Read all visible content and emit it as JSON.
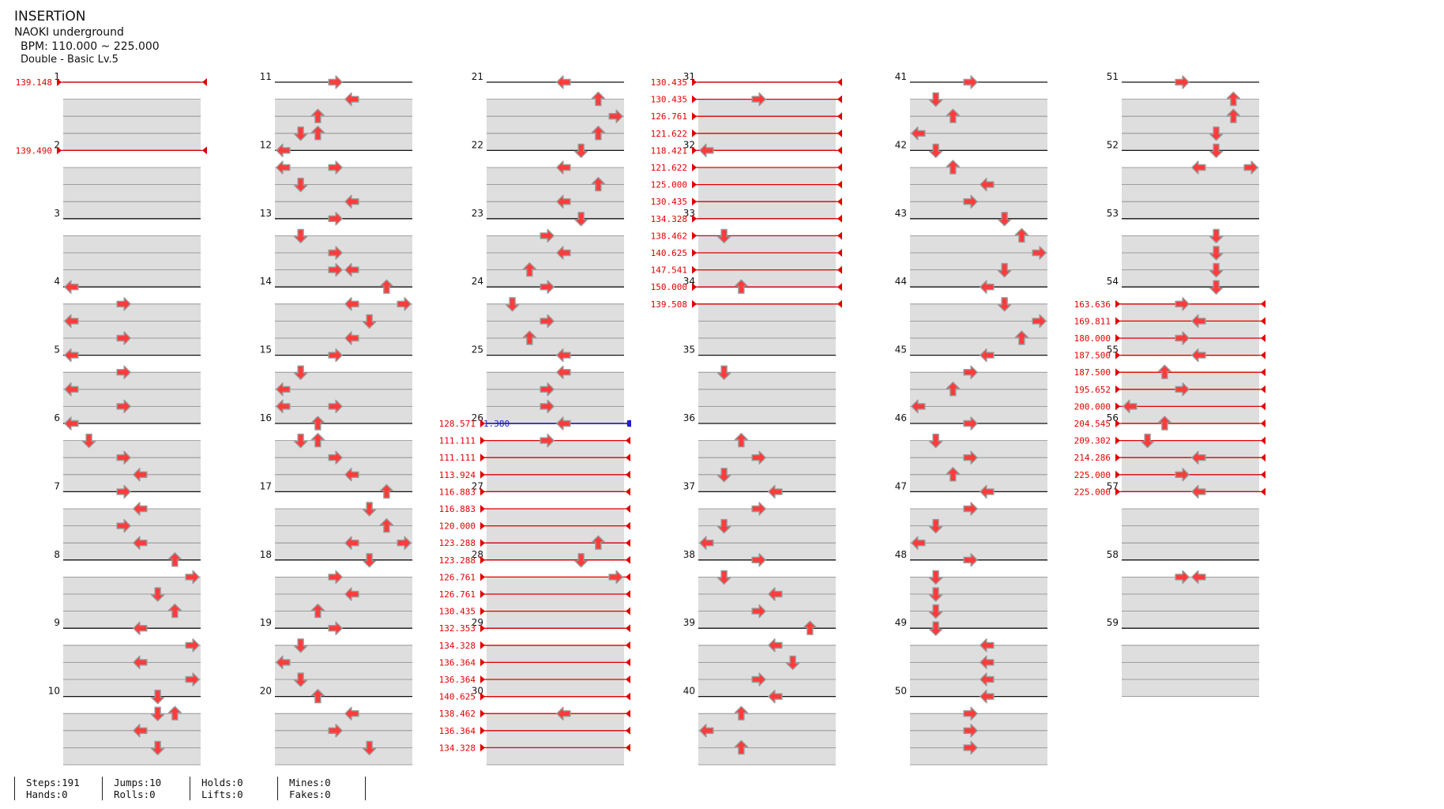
{
  "song": {
    "title": "INSERTiON",
    "artist": "NAOKI underground",
    "bpm": "BPM: 110.000 ~ 225.000",
    "difficulty": "Double - Basic  Lv.5"
  },
  "colors": {
    "arrow_fill": "#ff3b3b",
    "arrow_stroke": "#9a9a9a",
    "bpm_change": "#e00000",
    "stop": "#2020d0",
    "lane_band": "#dedede"
  },
  "measure_count": 59,
  "measure_labels": [
    "1",
    "2",
    "3",
    "4",
    "5",
    "6",
    "7",
    "8",
    "9",
    "10",
    "11",
    "12",
    "13",
    "14",
    "15",
    "16",
    "17",
    "18",
    "19",
    "20",
    "21",
    "22",
    "23",
    "24",
    "25",
    "26",
    "27",
    "28",
    "29",
    "30",
    "31",
    "32",
    "33",
    "34",
    "35",
    "36",
    "37",
    "38",
    "39",
    "40",
    "41",
    "42",
    "43",
    "44",
    "45",
    "46",
    "47",
    "48",
    "49",
    "50",
    "51",
    "52",
    "53",
    "54",
    "55",
    "56",
    "57",
    "58",
    "59"
  ],
  "notes": [
    {
      "m": 4,
      "r": 0,
      "l": 0,
      "d": "L"
    },
    {
      "m": 4,
      "r": 1,
      "l": 3,
      "d": "R"
    },
    {
      "m": 4,
      "r": 2,
      "l": 0,
      "d": "L"
    },
    {
      "m": 4,
      "r": 3,
      "l": 3,
      "d": "R"
    },
    {
      "m": 5,
      "r": 0,
      "l": 0,
      "d": "L"
    },
    {
      "m": 5,
      "r": 1,
      "l": 3,
      "d": "R"
    },
    {
      "m": 5,
      "r": 2,
      "l": 0,
      "d": "L"
    },
    {
      "m": 5,
      "r": 3,
      "l": 3,
      "d": "R"
    },
    {
      "m": 6,
      "r": 0,
      "l": 0,
      "d": "L"
    },
    {
      "m": 6,
      "r": 1,
      "l": 1,
      "d": "D"
    },
    {
      "m": 6,
      "r": 2,
      "l": 3,
      "d": "R"
    },
    {
      "m": 6,
      "r": 3,
      "l": 4,
      "d": "L"
    },
    {
      "m": 7,
      "r": 0,
      "l": 3,
      "d": "R"
    },
    {
      "m": 7,
      "r": 1,
      "l": 4,
      "d": "L"
    },
    {
      "m": 7,
      "r": 2,
      "l": 3,
      "d": "R"
    },
    {
      "m": 7,
      "r": 3,
      "l": 4,
      "d": "L"
    },
    {
      "m": 8,
      "r": 0,
      "l": 6,
      "d": "U"
    },
    {
      "m": 8,
      "r": 1,
      "l": 7,
      "d": "R"
    },
    {
      "m": 8,
      "r": 2,
      "l": 5,
      "d": "D"
    },
    {
      "m": 8,
      "r": 3,
      "l": 6,
      "d": "U"
    },
    {
      "m": 9,
      "r": 0,
      "l": 4,
      "d": "L"
    },
    {
      "m": 9,
      "r": 1,
      "l": 7,
      "d": "R"
    },
    {
      "m": 9,
      "r": 2,
      "l": 4,
      "d": "L"
    },
    {
      "m": 9,
      "r": 3,
      "l": 7,
      "d": "R"
    },
    {
      "m": 10,
      "r": 0,
      "l": 5,
      "d": "D"
    },
    {
      "m": 10,
      "r": 1,
      "l": 5,
      "d": "D"
    },
    {
      "m": 10,
      "r": 1,
      "l": 6,
      "d": "U"
    },
    {
      "m": 10,
      "r": 2,
      "l": 4,
      "d": "L"
    },
    {
      "m": 10,
      "r": 3,
      "l": 5,
      "d": "D"
    },
    {
      "m": 11,
      "r": 0,
      "l": 3,
      "d": "R"
    },
    {
      "m": 11,
      "r": 1,
      "l": 4,
      "d": "L"
    },
    {
      "m": 11,
      "r": 2,
      "l": 2,
      "d": "U"
    },
    {
      "m": 11,
      "r": 3,
      "l": 1,
      "d": "D"
    },
    {
      "m": 11,
      "r": 3,
      "l": 2,
      "d": "U"
    },
    {
      "m": 12,
      "r": 0,
      "l": 0,
      "d": "L"
    },
    {
      "m": 12,
      "r": 1,
      "l": 0,
      "d": "L"
    },
    {
      "m": 12,
      "r": 1,
      "l": 3,
      "d": "R"
    },
    {
      "m": 12,
      "r": 2,
      "l": 1,
      "d": "D"
    },
    {
      "m": 12,
      "r": 3,
      "l": 4,
      "d": "L"
    },
    {
      "m": 13,
      "r": 0,
      "l": 3,
      "d": "R"
    },
    {
      "m": 13,
      "r": 1,
      "l": 1,
      "d": "D"
    },
    {
      "m": 13,
      "r": 2,
      "l": 3,
      "d": "R"
    },
    {
      "m": 13,
      "r": 3,
      "l": 3,
      "d": "R"
    },
    {
      "m": 13,
      "r": 3,
      "l": 4,
      "d": "L"
    },
    {
      "m": 14,
      "r": 0,
      "l": 6,
      "d": "U"
    },
    {
      "m": 14,
      "r": 1,
      "l": 4,
      "d": "L"
    },
    {
      "m": 14,
      "r": 1,
      "l": 7,
      "d": "R"
    },
    {
      "m": 14,
      "r": 2,
      "l": 5,
      "d": "D"
    },
    {
      "m": 14,
      "r": 3,
      "l": 4,
      "d": "L"
    },
    {
      "m": 15,
      "r": 0,
      "l": 3,
      "d": "R"
    },
    {
      "m": 15,
      "r": 1,
      "l": 1,
      "d": "D"
    },
    {
      "m": 15,
      "r": 2,
      "l": 0,
      "d": "L"
    },
    {
      "m": 15,
      "r": 3,
      "l": 0,
      "d": "L"
    },
    {
      "m": 15,
      "r": 3,
      "l": 3,
      "d": "R"
    },
    {
      "m": 16,
      "r": 0,
      "l": 2,
      "d": "U"
    },
    {
      "m": 16,
      "r": 1,
      "l": 1,
      "d": "D"
    },
    {
      "m": 16,
      "r": 1,
      "l": 2,
      "d": "U"
    },
    {
      "m": 16,
      "r": 2,
      "l": 3,
      "d": "R"
    },
    {
      "m": 16,
      "r": 3,
      "l": 4,
      "d": "L"
    },
    {
      "m": 17,
      "r": 0,
      "l": 6,
      "d": "U"
    },
    {
      "m": 17,
      "r": 1,
      "l": 5,
      "d": "D"
    },
    {
      "m": 17,
      "r": 2,
      "l": 6,
      "d": "U"
    },
    {
      "m": 17,
      "r": 3,
      "l": 4,
      "d": "L"
    },
    {
      "m": 17,
      "r": 3,
      "l": 7,
      "d": "R"
    },
    {
      "m": 18,
      "r": 0,
      "l": 5,
      "d": "D"
    },
    {
      "m": 18,
      "r": 1,
      "l": 3,
      "d": "R"
    },
    {
      "m": 18,
      "r": 2,
      "l": 4,
      "d": "L"
    },
    {
      "m": 18,
      "r": 3,
      "l": 2,
      "d": "U"
    },
    {
      "m": 19,
      "r": 0,
      "l": 3,
      "d": "R"
    },
    {
      "m": 19,
      "r": 1,
      "l": 1,
      "d": "D"
    },
    {
      "m": 19,
      "r": 2,
      "l": 0,
      "d": "L"
    },
    {
      "m": 19,
      "r": 3,
      "l": 1,
      "d": "D"
    },
    {
      "m": 20,
      "r": 0,
      "l": 2,
      "d": "U"
    },
    {
      "m": 20,
      "r": 1,
      "l": 4,
      "d": "L"
    },
    {
      "m": 20,
      "r": 2,
      "l": 3,
      "d": "R"
    },
    {
      "m": 20,
      "r": 3,
      "l": 5,
      "d": "D"
    },
    {
      "m": 21,
      "r": 0,
      "l": 4,
      "d": "L"
    },
    {
      "m": 21,
      "r": 1,
      "l": 6,
      "d": "U"
    },
    {
      "m": 21,
      "r": 2,
      "l": 7,
      "d": "R"
    },
    {
      "m": 21,
      "r": 3,
      "l": 6,
      "d": "U"
    },
    {
      "m": 22,
      "r": 0,
      "l": 5,
      "d": "D"
    },
    {
      "m": 22,
      "r": 1,
      "l": 4,
      "d": "L"
    },
    {
      "m": 22,
      "r": 2,
      "l": 6,
      "d": "U"
    },
    {
      "m": 22,
      "r": 3,
      "l": 4,
      "d": "L"
    },
    {
      "m": 23,
      "r": 0,
      "l": 5,
      "d": "D"
    },
    {
      "m": 23,
      "r": 1,
      "l": 3,
      "d": "R"
    },
    {
      "m": 23,
      "r": 2,
      "l": 4,
      "d": "L"
    },
    {
      "m": 23,
      "r": 3,
      "l": 2,
      "d": "U"
    },
    {
      "m": 24,
      "r": 0,
      "l": 3,
      "d": "R"
    },
    {
      "m": 24,
      "r": 1,
      "l": 1,
      "d": "D"
    },
    {
      "m": 24,
      "r": 2,
      "l": 3,
      "d": "R"
    },
    {
      "m": 24,
      "r": 3,
      "l": 2,
      "d": "U"
    },
    {
      "m": 25,
      "r": 0,
      "l": 4,
      "d": "L"
    },
    {
      "m": 25,
      "r": 1,
      "l": 4,
      "d": "L"
    },
    {
      "m": 25,
      "r": 2,
      "l": 3,
      "d": "R"
    },
    {
      "m": 25,
      "r": 3,
      "l": 3,
      "d": "R"
    },
    {
      "m": 26,
      "r": 0,
      "l": 4,
      "d": "L"
    },
    {
      "m": 26,
      "r": 1,
      "l": 3,
      "d": "R"
    },
    {
      "m": 28,
      "r": 0,
      "l": 5,
      "d": "D"
    },
    {
      "m": 28,
      "r": 1,
      "l": 7,
      "d": "R"
    },
    {
      "m": 27,
      "r": 3,
      "l": 6,
      "d": "U"
    },
    {
      "m": 30,
      "r": 1,
      "l": 4,
      "d": "L"
    },
    {
      "m": 32,
      "r": 0,
      "l": 0,
      "d": "L"
    },
    {
      "m": 31,
      "r": 1,
      "l": 3,
      "d": "R"
    },
    {
      "m": 33,
      "r": 1,
      "l": 1,
      "d": "D"
    },
    {
      "m": 34,
      "r": 0,
      "l": 2,
      "d": "U"
    },
    {
      "m": 35,
      "r": 1,
      "l": 1,
      "d": "D"
    },
    {
      "m": 36,
      "r": 1,
      "l": 2,
      "d": "U"
    },
    {
      "m": 36,
      "r": 2,
      "l": 3,
      "d": "R"
    },
    {
      "m": 36,
      "r": 3,
      "l": 1,
      "d": "D"
    },
    {
      "m": 37,
      "r": 0,
      "l": 4,
      "d": "L"
    },
    {
      "m": 37,
      "r": 1,
      "l": 3,
      "d": "R"
    },
    {
      "m": 37,
      "r": 2,
      "l": 1,
      "d": "D"
    },
    {
      "m": 37,
      "r": 3,
      "l": 0,
      "d": "L"
    },
    {
      "m": 38,
      "r": 0,
      "l": 3,
      "d": "R"
    },
    {
      "m": 38,
      "r": 1,
      "l": 1,
      "d": "D"
    },
    {
      "m": 38,
      "r": 2,
      "l": 4,
      "d": "L"
    },
    {
      "m": 38,
      "r": 3,
      "l": 3,
      "d": "R"
    },
    {
      "m": 39,
      "r": 0,
      "l": 6,
      "d": "U"
    },
    {
      "m": 39,
      "r": 1,
      "l": 4,
      "d": "L"
    },
    {
      "m": 39,
      "r": 2,
      "l": 5,
      "d": "D"
    },
    {
      "m": 39,
      "r": 3,
      "l": 3,
      "d": "R"
    },
    {
      "m": 40,
      "r": 0,
      "l": 4,
      "d": "L"
    },
    {
      "m": 40,
      "r": 1,
      "l": 2,
      "d": "U"
    },
    {
      "m": 40,
      "r": 2,
      "l": 0,
      "d": "L"
    },
    {
      "m": 40,
      "r": 3,
      "l": 2,
      "d": "U"
    },
    {
      "m": 41,
      "r": 0,
      "l": 3,
      "d": "R"
    },
    {
      "m": 41,
      "r": 1,
      "l": 1,
      "d": "D"
    },
    {
      "m": 41,
      "r": 2,
      "l": 2,
      "d": "U"
    },
    {
      "m": 41,
      "r": 3,
      "l": 0,
      "d": "L"
    },
    {
      "m": 42,
      "r": 0,
      "l": 1,
      "d": "D"
    },
    {
      "m": 42,
      "r": 1,
      "l": 2,
      "d": "U"
    },
    {
      "m": 42,
      "r": 2,
      "l": 4,
      "d": "L"
    },
    {
      "m": 42,
      "r": 3,
      "l": 3,
      "d": "R"
    },
    {
      "m": 43,
      "r": 0,
      "l": 5,
      "d": "D"
    },
    {
      "m": 43,
      "r": 1,
      "l": 6,
      "d": "U"
    },
    {
      "m": 43,
      "r": 2,
      "l": 7,
      "d": "R"
    },
    {
      "m": 43,
      "r": 3,
      "l": 5,
      "d": "D"
    },
    {
      "m": 44,
      "r": 0,
      "l": 4,
      "d": "L"
    },
    {
      "m": 44,
      "r": 1,
      "l": 5,
      "d": "D"
    },
    {
      "m": 44,
      "r": 2,
      "l": 7,
      "d": "R"
    },
    {
      "m": 44,
      "r": 3,
      "l": 6,
      "d": "U"
    },
    {
      "m": 45,
      "r": 0,
      "l": 4,
      "d": "L"
    },
    {
      "m": 45,
      "r": 1,
      "l": 3,
      "d": "R"
    },
    {
      "m": 45,
      "r": 2,
      "l": 2,
      "d": "U"
    },
    {
      "m": 45,
      "r": 3,
      "l": 0,
      "d": "L"
    },
    {
      "m": 46,
      "r": 0,
      "l": 3,
      "d": "R"
    },
    {
      "m": 46,
      "r": 1,
      "l": 1,
      "d": "D"
    },
    {
      "m": 46,
      "r": 2,
      "l": 3,
      "d": "R"
    },
    {
      "m": 46,
      "r": 3,
      "l": 2,
      "d": "U"
    },
    {
      "m": 47,
      "r": 0,
      "l": 4,
      "d": "L"
    },
    {
      "m": 47,
      "r": 1,
      "l": 3,
      "d": "R"
    },
    {
      "m": 47,
      "r": 2,
      "l": 1,
      "d": "D"
    },
    {
      "m": 47,
      "r": 3,
      "l": 0,
      "d": "L"
    },
    {
      "m": 48,
      "r": 0,
      "l": 3,
      "d": "R"
    },
    {
      "m": 48,
      "r": 1,
      "l": 1,
      "d": "D"
    },
    {
      "m": 48,
      "r": 2,
      "l": 1,
      "d": "D"
    },
    {
      "m": 48,
      "r": 3,
      "l": 1,
      "d": "D"
    },
    {
      "m": 49,
      "r": 0,
      "l": 1,
      "d": "D"
    },
    {
      "m": 49,
      "r": 1,
      "l": 4,
      "d": "L"
    },
    {
      "m": 49,
      "r": 2,
      "l": 4,
      "d": "L"
    },
    {
      "m": 49,
      "r": 3,
      "l": 4,
      "d": "L"
    },
    {
      "m": 50,
      "r": 0,
      "l": 4,
      "d": "L"
    },
    {
      "m": 50,
      "r": 1,
      "l": 3,
      "d": "R"
    },
    {
      "m": 50,
      "r": 2,
      "l": 3,
      "d": "R"
    },
    {
      "m": 50,
      "r": 3,
      "l": 3,
      "d": "R"
    },
    {
      "m": 51,
      "r": 0,
      "l": 3,
      "d": "R"
    },
    {
      "m": 51,
      "r": 1,
      "l": 6,
      "d": "U"
    },
    {
      "m": 51,
      "r": 2,
      "l": 6,
      "d": "U"
    },
    {
      "m": 51,
      "r": 3,
      "l": 5,
      "d": "D"
    },
    {
      "m": 52,
      "r": 0,
      "l": 5,
      "d": "D"
    },
    {
      "m": 52,
      "r": 1,
      "l": 4,
      "d": "L"
    },
    {
      "m": 52,
      "r": 1,
      "l": 7,
      "d": "R"
    },
    {
      "m": 53,
      "r": 1,
      "l": 5,
      "d": "D"
    },
    {
      "m": 53,
      "r": 2,
      "l": 5,
      "d": "D"
    },
    {
      "m": 53,
      "r": 3,
      "l": 5,
      "d": "D"
    },
    {
      "m": 54,
      "r": 0,
      "l": 5,
      "d": "D"
    },
    {
      "m": 54,
      "r": 1,
      "l": 3,
      "d": "R"
    },
    {
      "m": 54,
      "r": 2,
      "l": 4,
      "d": "L"
    },
    {
      "m": 54,
      "r": 3,
      "l": 3,
      "d": "R"
    },
    {
      "m": 55,
      "r": 0,
      "l": 4,
      "d": "L"
    },
    {
      "m": 55,
      "r": 1,
      "l": 2,
      "d": "U"
    },
    {
      "m": 55,
      "r": 2,
      "l": 3,
      "d": "R"
    },
    {
      "m": 55,
      "r": 3,
      "l": 0,
      "d": "L"
    },
    {
      "m": 56,
      "r": 0,
      "l": 2,
      "d": "U"
    },
    {
      "m": 56,
      "r": 1,
      "l": 1,
      "d": "D"
    },
    {
      "m": 56,
      "r": 2,
      "l": 4,
      "d": "L"
    },
    {
      "m": 56,
      "r": 3,
      "l": 3,
      "d": "R"
    },
    {
      "m": 57,
      "r": 0,
      "l": 4,
      "d": "L"
    },
    {
      "m": 58,
      "r": 1,
      "l": 3,
      "d": "R"
    },
    {
      "m": 58,
      "r": 1,
      "l": 4,
      "d": "L"
    }
  ],
  "bpm_changes": [
    {
      "m": 1,
      "r": 0,
      "value": "139.148"
    },
    {
      "m": 2,
      "r": 0,
      "value": "139.490"
    },
    {
      "m": 26,
      "r": 0,
      "value": "128.571"
    },
    {
      "m": 26,
      "r": 1,
      "value": "111.111"
    },
    {
      "m": 26,
      "r": 2,
      "value": "111.111"
    },
    {
      "m": 26,
      "r": 3,
      "value": "113.924"
    },
    {
      "m": 27,
      "r": 0,
      "value": "116.883"
    },
    {
      "m": 27,
      "r": 1,
      "value": "116.883"
    },
    {
      "m": 27,
      "r": 2,
      "value": "120.000"
    },
    {
      "m": 27,
      "r": 3,
      "value": "123.288"
    },
    {
      "m": 28,
      "r": 0,
      "value": "123.288"
    },
    {
      "m": 28,
      "r": 1,
      "value": "126.761"
    },
    {
      "m": 28,
      "r": 2,
      "value": "126.761"
    },
    {
      "m": 28,
      "r": 3,
      "value": "130.435"
    },
    {
      "m": 29,
      "r": 0,
      "value": "132.353"
    },
    {
      "m": 29,
      "r": 1,
      "value": "134.328"
    },
    {
      "m": 29,
      "r": 2,
      "value": "136.364"
    },
    {
      "m": 29,
      "r": 3,
      "value": "136.364"
    },
    {
      "m": 30,
      "r": 0,
      "value": "140.625"
    },
    {
      "m": 30,
      "r": 1,
      "value": "138.462"
    },
    {
      "m": 30,
      "r": 2,
      "value": "136.364"
    },
    {
      "m": 30,
      "r": 3,
      "value": "134.328"
    },
    {
      "m": 31,
      "r": 0,
      "value": "130.435"
    },
    {
      "m": 31,
      "r": 1,
      "value": "130.435"
    },
    {
      "m": 31,
      "r": 2,
      "value": "126.761"
    },
    {
      "m": 31,
      "r": 3,
      "value": "121.622"
    },
    {
      "m": 32,
      "r": 0,
      "value": "118.421"
    },
    {
      "m": 32,
      "r": 1,
      "value": "121.622"
    },
    {
      "m": 32,
      "r": 2,
      "value": "125.000"
    },
    {
      "m": 32,
      "r": 3,
      "value": "130.435"
    },
    {
      "m": 33,
      "r": 0,
      "value": "134.328"
    },
    {
      "m": 33,
      "r": 1,
      "value": "138.462"
    },
    {
      "m": 33,
      "r": 2,
      "value": "140.625"
    },
    {
      "m": 33,
      "r": 3,
      "value": "147.541"
    },
    {
      "m": 34,
      "r": 0,
      "value": "150.000"
    },
    {
      "m": 34,
      "r": 1,
      "value": "139.508"
    },
    {
      "m": 54,
      "r": 1,
      "value": "163.636"
    },
    {
      "m": 54,
      "r": 2,
      "value": "169.811"
    },
    {
      "m": 54,
      "r": 3,
      "value": "180.000"
    },
    {
      "m": 55,
      "r": 0,
      "value": "187.500"
    },
    {
      "m": 55,
      "r": 1,
      "value": "187.500"
    },
    {
      "m": 55,
      "r": 2,
      "value": "195.652"
    },
    {
      "m": 55,
      "r": 3,
      "value": "200.000"
    },
    {
      "m": 56,
      "r": 0,
      "value": "204.545"
    },
    {
      "m": 56,
      "r": 1,
      "value": "209.302"
    },
    {
      "m": 56,
      "r": 2,
      "value": "214.286"
    },
    {
      "m": 56,
      "r": 3,
      "value": "225.000"
    },
    {
      "m": 57,
      "r": 0,
      "value": "225.000"
    }
  ],
  "stops": [
    {
      "m": 26,
      "r": 0,
      "value": "1.380"
    }
  ],
  "stats": {
    "steps": "Steps:191",
    "hands": "Hands:0",
    "jumps": "Jumps:10",
    "rolls": "Rolls:0",
    "holds": "Holds:0",
    "lifts": "Lifts:0",
    "mines": "Mines:0",
    "fakes": "Fakes:0"
  }
}
